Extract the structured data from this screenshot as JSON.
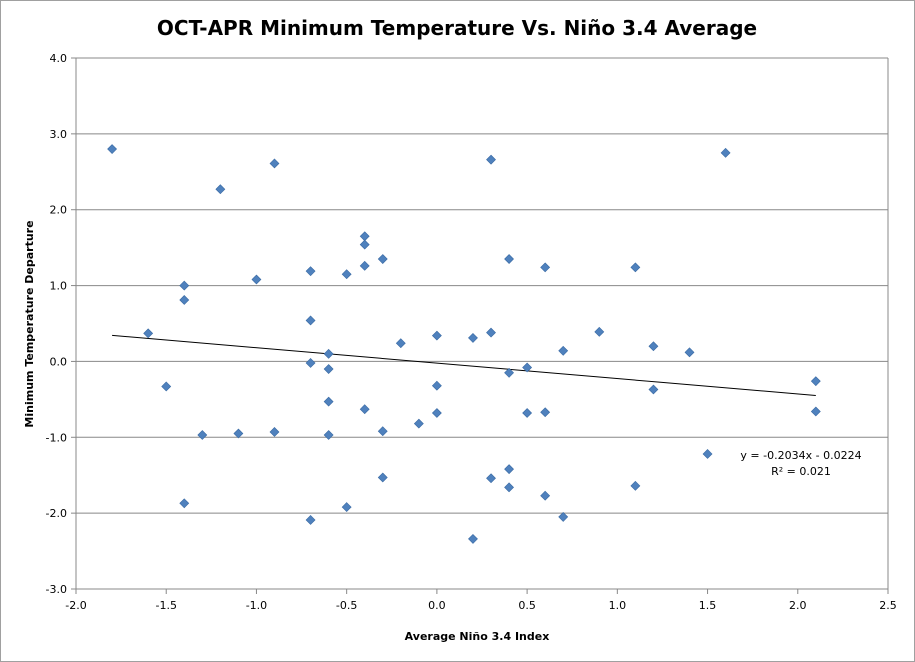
{
  "chart_data": {
    "type": "scatter",
    "title": "OCT-APR Minimum Temperature Vs. Niño 3.4 Average",
    "xlabel": "Average Niño 3.4 Index",
    "ylabel": "Minimum Temperature Departure",
    "xlim": [
      -2.0,
      2.5
    ],
    "ylim": [
      -3.0,
      4.0
    ],
    "x_ticks": [
      "-2.0",
      "-1.5",
      "-1.0",
      "-0.5",
      "0.0",
      "0.5",
      "1.0",
      "1.5",
      "2.0",
      "2.5"
    ],
    "y_ticks": [
      "4.0",
      "3.0",
      "2.0",
      "1.0",
      "0.0",
      "-1.0",
      "-2.0",
      "-3.0"
    ],
    "grid": "horizontal major gridlines",
    "legend": "none",
    "marker": "diamond",
    "marker_color": "#4f81bd",
    "points": [
      {
        "x": -1.8,
        "y": 2.8
      },
      {
        "x": -1.6,
        "y": 0.37
      },
      {
        "x": -1.5,
        "y": -0.33
      },
      {
        "x": -1.4,
        "y": 1.0
      },
      {
        "x": -1.4,
        "y": 0.81
      },
      {
        "x": -1.4,
        "y": -1.87
      },
      {
        "x": -1.3,
        "y": -0.97
      },
      {
        "x": -1.2,
        "y": 2.27
      },
      {
        "x": -1.1,
        "y": -0.95
      },
      {
        "x": -1.0,
        "y": 1.08
      },
      {
        "x": -0.9,
        "y": 2.61
      },
      {
        "x": -0.9,
        "y": -0.93
      },
      {
        "x": -0.7,
        "y": 1.19
      },
      {
        "x": -0.7,
        "y": 0.54
      },
      {
        "x": -0.7,
        "y": -0.02
      },
      {
        "x": -0.7,
        "y": -2.09
      },
      {
        "x": -0.6,
        "y": 0.1
      },
      {
        "x": -0.6,
        "y": -0.1
      },
      {
        "x": -0.6,
        "y": -0.53
      },
      {
        "x": -0.6,
        "y": -0.97
      },
      {
        "x": -0.5,
        "y": 1.15
      },
      {
        "x": -0.5,
        "y": -1.92
      },
      {
        "x": -0.4,
        "y": 1.65
      },
      {
        "x": -0.4,
        "y": 1.54
      },
      {
        "x": -0.4,
        "y": 1.26
      },
      {
        "x": -0.4,
        "y": -0.63
      },
      {
        "x": -0.3,
        "y": 1.35
      },
      {
        "x": -0.3,
        "y": -0.92
      },
      {
        "x": -0.3,
        "y": -1.53
      },
      {
        "x": -0.2,
        "y": 0.24
      },
      {
        "x": -0.1,
        "y": -0.82
      },
      {
        "x": 0.0,
        "y": 0.34
      },
      {
        "x": 0.0,
        "y": -0.32
      },
      {
        "x": 0.0,
        "y": -0.68
      },
      {
        "x": 0.2,
        "y": 0.31
      },
      {
        "x": 0.2,
        "y": -2.34
      },
      {
        "x": 0.3,
        "y": 2.66
      },
      {
        "x": 0.3,
        "y": 0.38
      },
      {
        "x": 0.3,
        "y": -1.54
      },
      {
        "x": 0.4,
        "y": 1.35
      },
      {
        "x": 0.4,
        "y": -0.15
      },
      {
        "x": 0.4,
        "y": -1.42
      },
      {
        "x": 0.4,
        "y": -1.66
      },
      {
        "x": 0.5,
        "y": -0.08
      },
      {
        "x": 0.5,
        "y": -0.68
      },
      {
        "x": 0.6,
        "y": 1.24
      },
      {
        "x": 0.6,
        "y": -0.67
      },
      {
        "x": 0.6,
        "y": -1.77
      },
      {
        "x": 0.7,
        "y": 0.14
      },
      {
        "x": 0.7,
        "y": -2.05
      },
      {
        "x": 0.9,
        "y": 0.39
      },
      {
        "x": 1.1,
        "y": 1.24
      },
      {
        "x": 1.1,
        "y": -1.64
      },
      {
        "x": 1.2,
        "y": 0.2
      },
      {
        "x": 1.2,
        "y": -0.37
      },
      {
        "x": 1.4,
        "y": 0.12
      },
      {
        "x": 1.5,
        "y": -1.22
      },
      {
        "x": 1.6,
        "y": 2.75
      },
      {
        "x": 2.1,
        "y": -0.26
      },
      {
        "x": 2.1,
        "y": -0.66
      }
    ],
    "trendline": {
      "type": "linear",
      "slope": -0.2034,
      "intercept": -0.0224,
      "x_range": [
        -1.8,
        2.1
      ],
      "color": "#000000"
    },
    "annotations": {
      "equation": "y = -0.2034x - 0.0224",
      "r_squared": "R² = 0.021"
    }
  }
}
